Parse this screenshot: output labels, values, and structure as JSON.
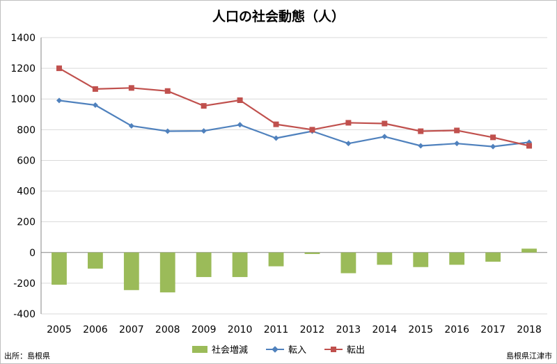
{
  "title": "人口の社会動態（人）",
  "source": "出所：島根県",
  "credit": "島根県江津市",
  "colors": {
    "bar": "#9bbb59",
    "inflow": "#4f81bd",
    "outflow": "#c0504d",
    "grid": "#d9d9d9",
    "axis": "#868686"
  },
  "chart_data": {
    "type": "bar",
    "title": "人口の社会動態（人）",
    "xlabel": "",
    "ylabel": "",
    "ylim": [
      -400,
      1400
    ],
    "yticks": [
      -400,
      -200,
      0,
      200,
      400,
      600,
      800,
      1000,
      1200,
      1400
    ],
    "grid": true,
    "legend_position": "bottom",
    "categories": [
      "2005",
      "2006",
      "2007",
      "2008",
      "2009",
      "2010",
      "2011",
      "2012",
      "2013",
      "2014",
      "2015",
      "2016",
      "2017",
      "2018"
    ],
    "series": [
      {
        "name": "社会増減",
        "type": "bar",
        "values": [
          -210,
          -105,
          -245,
          -260,
          -160,
          -160,
          -90,
          -10,
          -135,
          -80,
          -95,
          -80,
          -60,
          25
        ]
      },
      {
        "name": "転入",
        "type": "line",
        "marker": "diamond",
        "values": [
          990,
          960,
          825,
          790,
          792,
          832,
          745,
          790,
          710,
          755,
          695,
          710,
          690,
          718
        ]
      },
      {
        "name": "転出",
        "type": "line",
        "marker": "square",
        "values": [
          1200,
          1065,
          1072,
          1052,
          955,
          992,
          835,
          800,
          845,
          840,
          790,
          795,
          750,
          695
        ]
      }
    ]
  }
}
